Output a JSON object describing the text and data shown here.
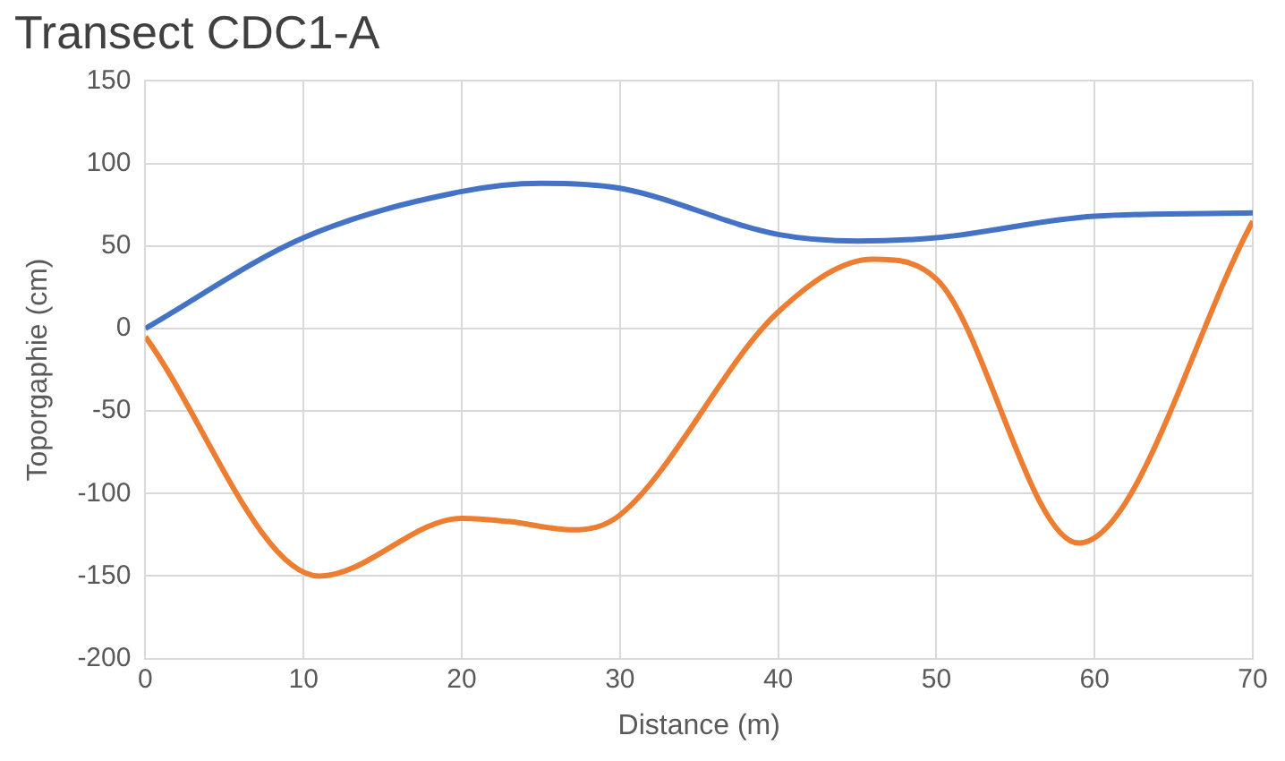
{
  "chart_data": {
    "type": "line",
    "title": "Transect CDC1-A",
    "xlabel": "Distance (m)",
    "ylabel": "Toporgaphie (cm)",
    "xlim": [
      0,
      70
    ],
    "xticks": [
      0,
      10,
      20,
      30,
      40,
      50,
      60,
      70
    ],
    "ylim": [
      -200,
      150
    ],
    "yticks": [
      -200,
      -150,
      -100,
      -50,
      0,
      50,
      100,
      150
    ],
    "grid": true,
    "legend": false,
    "marker": "none",
    "line_style": "solid",
    "series": [
      {
        "color": "#4472c4",
        "x": [
          0,
          10,
          20,
          25,
          30,
          40,
          45,
          50,
          60,
          70
        ],
        "values": [
          0,
          55,
          83,
          88,
          85,
          57,
          53,
          55,
          68,
          70
        ]
      },
      {
        "color": "#ed7d31",
        "x": [
          0,
          11,
          20,
          23,
          27,
          30,
          40,
          46,
          50,
          59,
          70
        ],
        "values": [
          -5,
          -150,
          -115,
          -117,
          -122,
          -113,
          10,
          42,
          30,
          -130,
          65
        ]
      }
    ]
  }
}
